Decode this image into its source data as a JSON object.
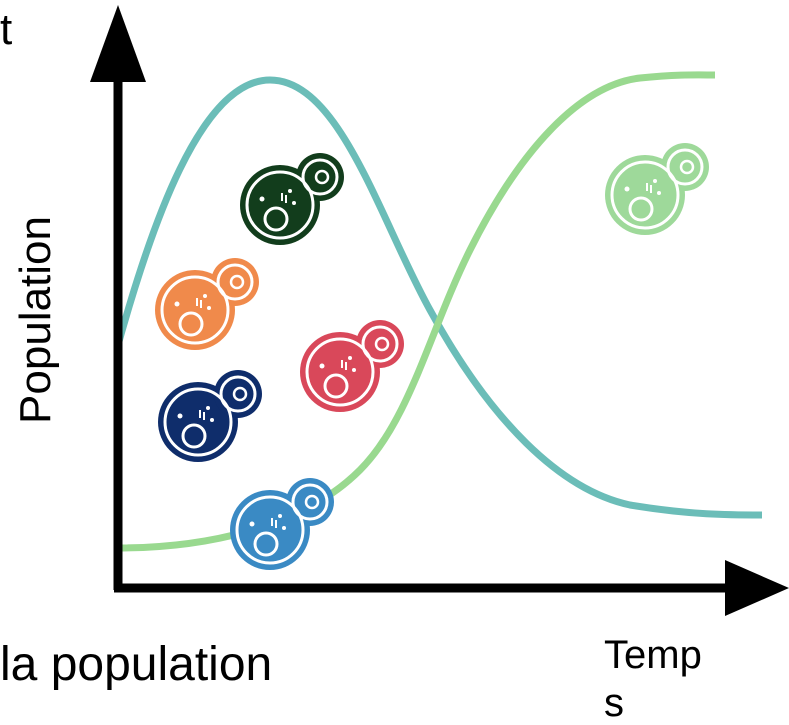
{
  "texts": {
    "top_left": "t",
    "y_axis": "Population",
    "x_axis_line1": "Temp",
    "x_axis_line2": "s",
    "caption": "la population"
  }
}
